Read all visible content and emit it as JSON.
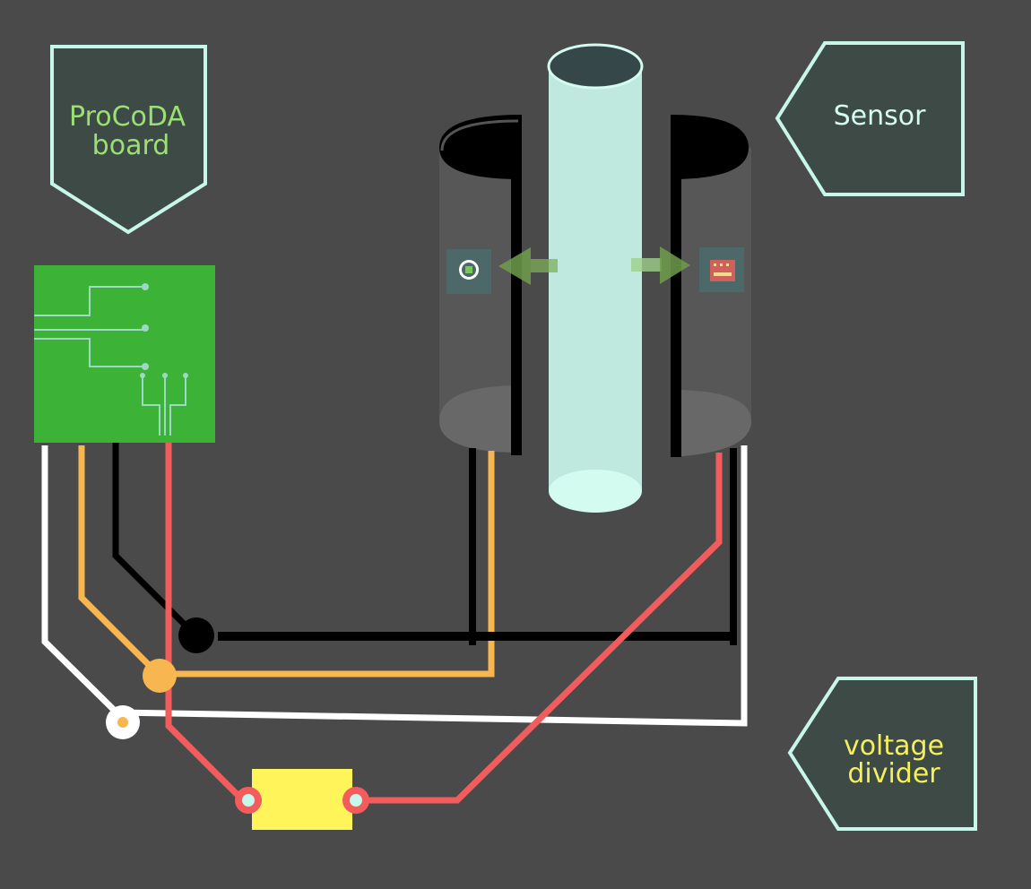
{
  "labels": {
    "board": {
      "line1": "ProCoDA",
      "line2": "board"
    },
    "sensor": "Sensor",
    "divider": {
      "line1": "voltage",
      "line2": "divider"
    }
  },
  "colors": {
    "background": "#4a4a4a",
    "callout_fill": "#3d4a46",
    "callout_border": "#c6f7ea",
    "board_text": "#9be072",
    "sensor_text": "#d6fbf1",
    "divider_text": "#f4f05c",
    "pcb": "#3cb236",
    "pcb_trace": "#9ed7c6",
    "tube": "#bfe9df",
    "tube_end": "#d4fbf0",
    "sensor_body": "#5a5a5a",
    "wire_white": "#ffffff",
    "wire_orange": "#f8b650",
    "wire_black": "#000000",
    "wire_red": "#f25c5c",
    "resistor": "#fff459",
    "arrow": "#7eaf5a"
  },
  "icons": {
    "emitter": "led-emitter-icon",
    "detector": "photodetector-icon"
  }
}
